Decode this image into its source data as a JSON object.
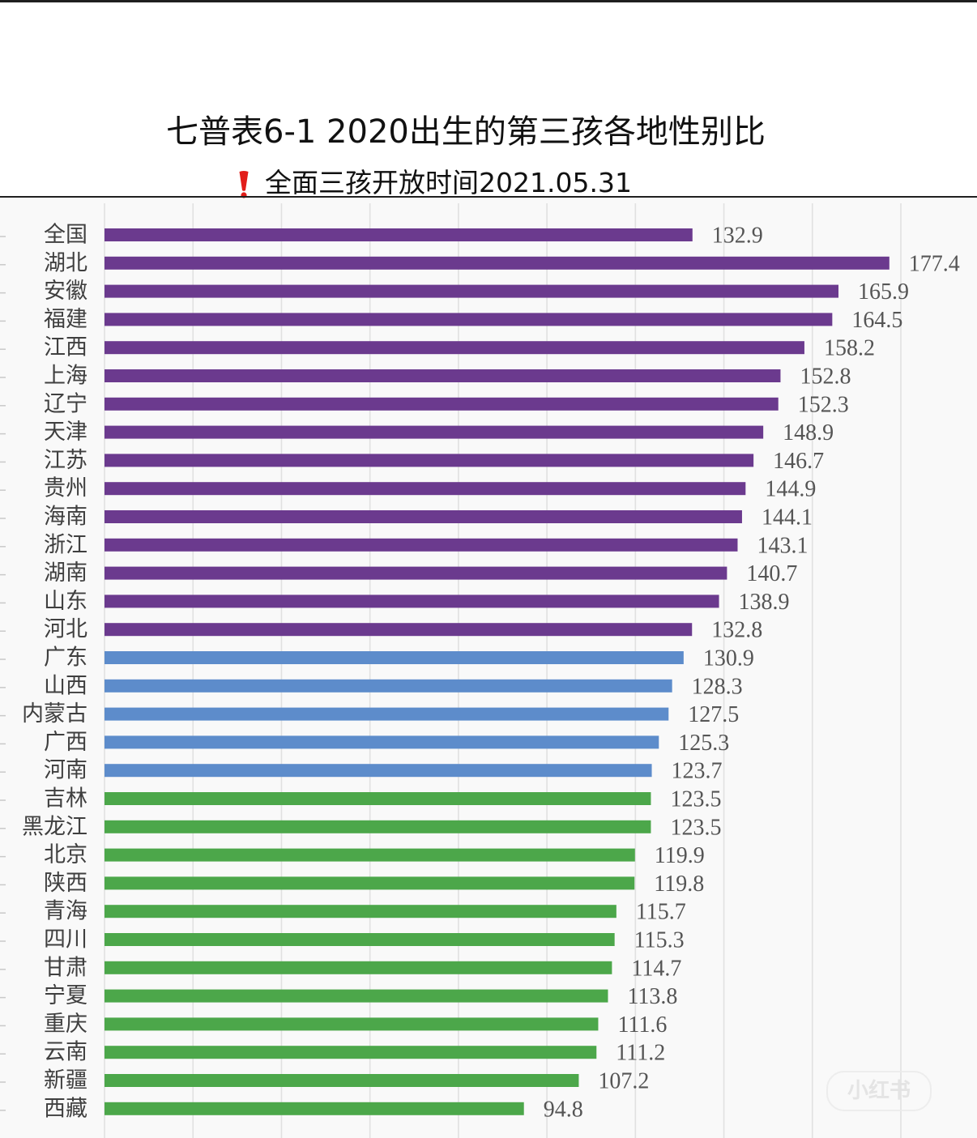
{
  "chart_data": {
    "type": "bar",
    "orientation": "horizontal",
    "title": "七普表6-1 2020出生的第三孩各地性别比",
    "subtitle": "全面三孩开放时间2021.05.31",
    "xlabel": "",
    "ylabel": "",
    "xlim": [
      0,
      180
    ],
    "grid": true,
    "x_grid_step": 20,
    "categories": [
      "全国",
      "湖北",
      "安徽",
      "福建",
      "江西",
      "上海",
      "辽宁",
      "天津",
      "江苏",
      "贵州",
      "海南",
      "浙江",
      "湖南",
      "山东",
      "河北",
      "广东",
      "山西",
      "内蒙古",
      "广西",
      "河南",
      "吉林",
      "黑龙江",
      "北京",
      "陕西",
      "青海",
      "四川",
      "甘肃",
      "宁夏",
      "重庆",
      "云南",
      "新疆",
      "西藏"
    ],
    "values": [
      132.9,
      177.4,
      165.9,
      164.5,
      158.2,
      152.8,
      152.3,
      148.9,
      146.7,
      144.9,
      144.1,
      143.1,
      140.7,
      138.9,
      132.8,
      130.9,
      128.3,
      127.5,
      125.3,
      123.7,
      123.5,
      123.5,
      119.9,
      119.8,
      115.7,
      115.3,
      114.7,
      113.8,
      111.6,
      111.2,
      107.2,
      94.8
    ],
    "bar_colors": [
      "#6b3a8e",
      "#6b3a8e",
      "#6b3a8e",
      "#6b3a8e",
      "#6b3a8e",
      "#6b3a8e",
      "#6b3a8e",
      "#6b3a8e",
      "#6b3a8e",
      "#6b3a8e",
      "#6b3a8e",
      "#6b3a8e",
      "#6b3a8e",
      "#6b3a8e",
      "#6b3a8e",
      "#5d8ccb",
      "#5d8ccb",
      "#5d8ccb",
      "#5d8ccb",
      "#5d8ccb",
      "#4ca74a",
      "#4ca74a",
      "#4ca74a",
      "#4ca74a",
      "#4ca74a",
      "#4ca74a",
      "#4ca74a",
      "#4ca74a",
      "#4ca74a",
      "#4ca74a",
      "#4ca74a",
      "#4ca74a"
    ]
  },
  "colors": {
    "purple": "#6b3a8e",
    "blue": "#5d8ccb",
    "green": "#4ca74a",
    "alert_red": "#e21d1a",
    "gridline": "#e1e1e1"
  },
  "icons": {
    "subtitle_icon": "red-exclamation-icon"
  },
  "watermark": "小红书"
}
